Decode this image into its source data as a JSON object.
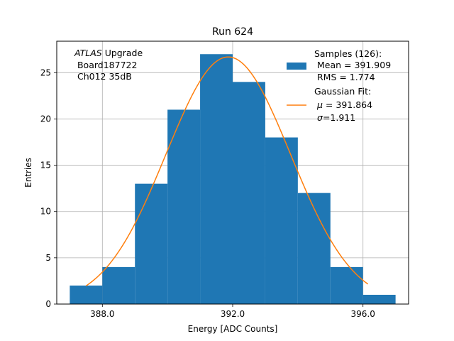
{
  "chart_data": {
    "type": "bar",
    "title": "Run 624",
    "xlabel": "Energy [ADC Counts]",
    "ylabel": "Entries",
    "xlim": [
      386.6,
      397.4
    ],
    "ylim": [
      0,
      28.4
    ],
    "grid": true,
    "x_ticks": [
      388,
      392,
      396
    ],
    "x_tick_labels": [
      "388.0",
      "392.0",
      "396.0"
    ],
    "y_ticks": [
      0,
      5,
      10,
      15,
      20,
      25
    ],
    "y_tick_labels": [
      "0",
      "5",
      "10",
      "15",
      "20",
      "25"
    ],
    "bin_edges": [
      387,
      388,
      389,
      390,
      391,
      392,
      393,
      394,
      395,
      396,
      397
    ],
    "values": [
      2,
      4,
      13,
      21,
      27,
      24,
      18,
      12,
      4,
      1
    ],
    "fit": {
      "type": "gaussian",
      "mu": 391.864,
      "sigma": 1.911,
      "amplitude": 26.7,
      "x_range": [
        387.5,
        396.15
      ]
    },
    "colors": {
      "bars": "#1f77b4",
      "fit": "#ff7f0e",
      "grid": "#b0b0b0"
    },
    "annotation": {
      "line1_italic": "ATLAS",
      "line1_rest": " Upgrade",
      "line2": " Board187722",
      "line3": " Ch012 35dB"
    },
    "legend": {
      "position": "top-right",
      "samples": {
        "line1": "Samples (126):",
        "line2": " Mean = 391.909",
        "line3": " RMS = 1.774"
      },
      "fit": {
        "line1": "Gaussian Fit:",
        "line2_symbol": "μ",
        "line2_rest": " = 391.864",
        "line3_symbol": "σ",
        "line3_rest": "=1.911"
      }
    }
  }
}
